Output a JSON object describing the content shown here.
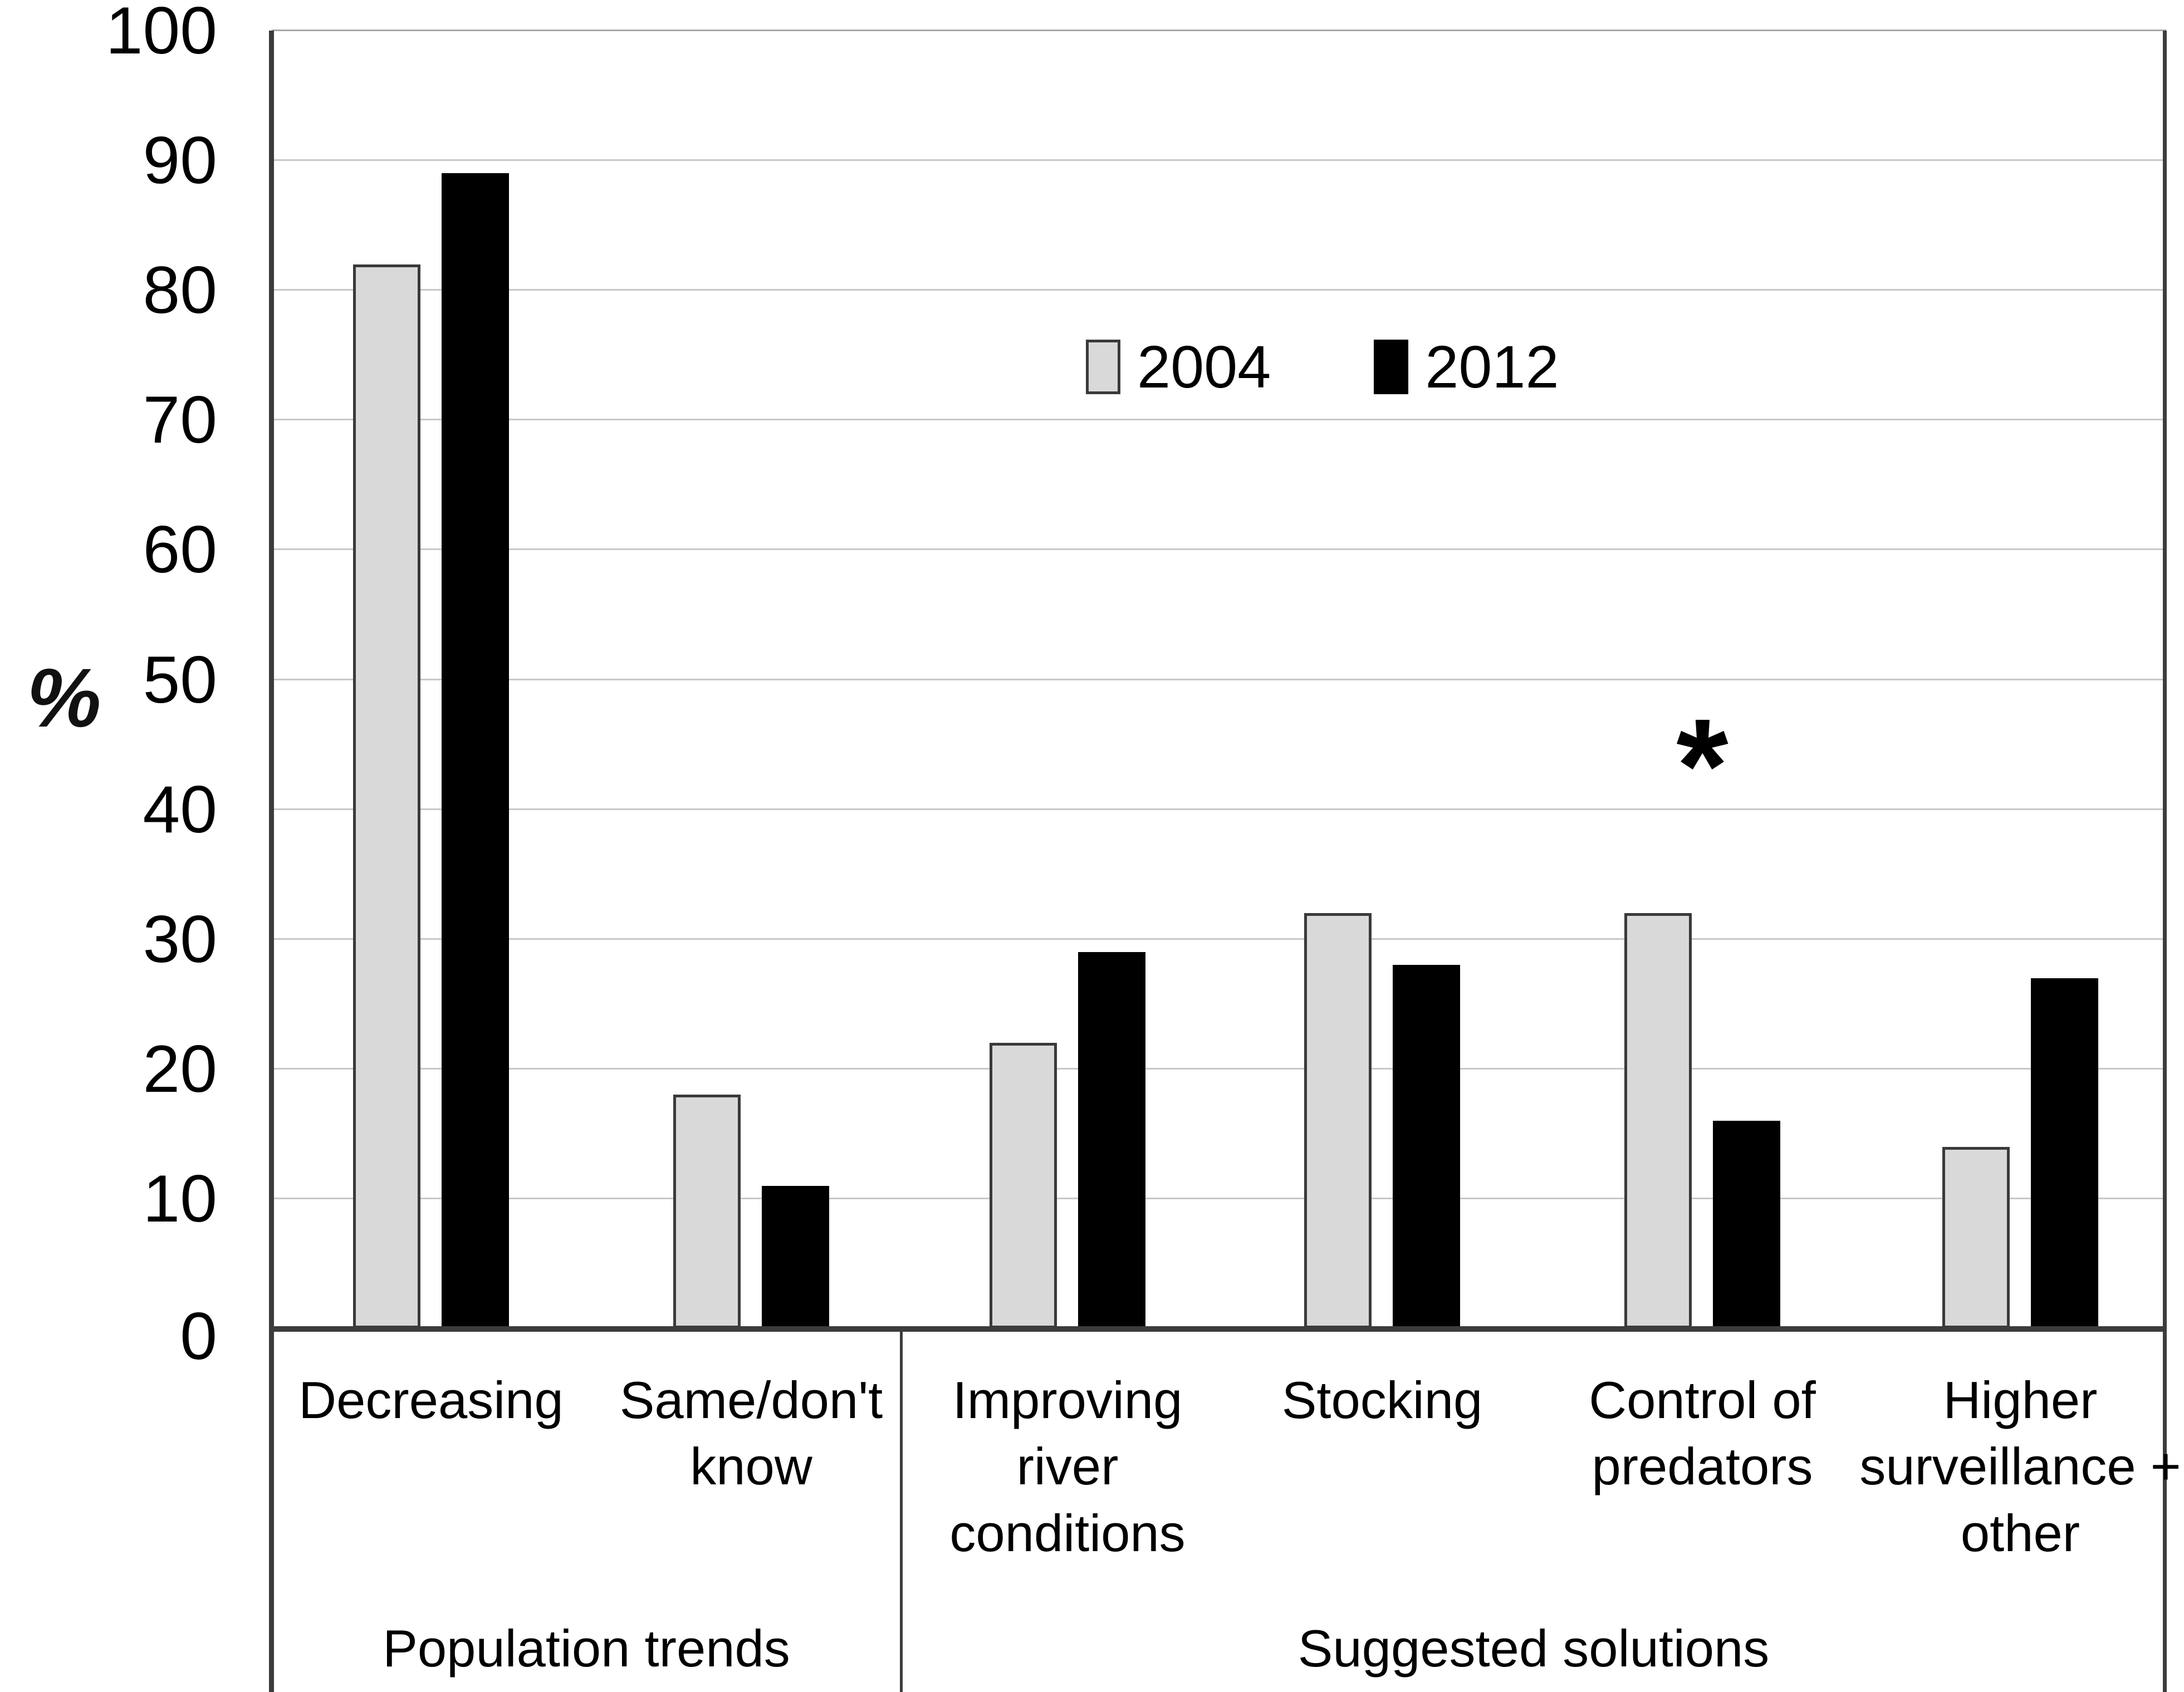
{
  "chart_data": {
    "type": "bar",
    "title": "",
    "ylabel": "%",
    "xlabel": "",
    "ylim": [
      0,
      100
    ],
    "ytick_interval": 10,
    "yticks": [
      0,
      10,
      20,
      30,
      40,
      50,
      60,
      70,
      80,
      90,
      100
    ],
    "grid": "horizontal",
    "legend_position": "inside-top-center",
    "categories": [
      "Decreasing",
      "Same/don't know",
      "Improving river conditions",
      "Stocking",
      "Control of predators",
      "Higher surveillance + other"
    ],
    "category_label_lines": [
      "Decreasing",
      "Same/don't\nknow",
      "Improving\nriver\nconditions",
      "Stocking",
      "Control of\npredators",
      "Higher\nsurveillance +\nother"
    ],
    "series": [
      {
        "name": "2004",
        "color": "#d9d9d9",
        "values": [
          82,
          18,
          22,
          32,
          32,
          14
        ]
      },
      {
        "name": "2012",
        "color": "#000000",
        "values": [
          89,
          11,
          29,
          28,
          16,
          27
        ]
      }
    ],
    "sections": [
      {
        "label": "Population trends",
        "categories": [
          "Decreasing",
          "Same/don't know"
        ]
      },
      {
        "label": "Suggested solutions",
        "categories": [
          "Improving river conditions",
          "Stocking",
          "Control of predators",
          "Higher surveillance + other"
        ]
      }
    ],
    "annotation": {
      "symbol": "*",
      "category": "Control of predators",
      "y_value": 44
    }
  },
  "colors": {
    "bar_2004_fill": "#d9d9d9",
    "bar_2012_fill": "#000000",
    "bar_border": "#3a3a3a",
    "gridline": "#c8c8c8",
    "axis": "#3c3c3c",
    "background": "#ffffff"
  }
}
